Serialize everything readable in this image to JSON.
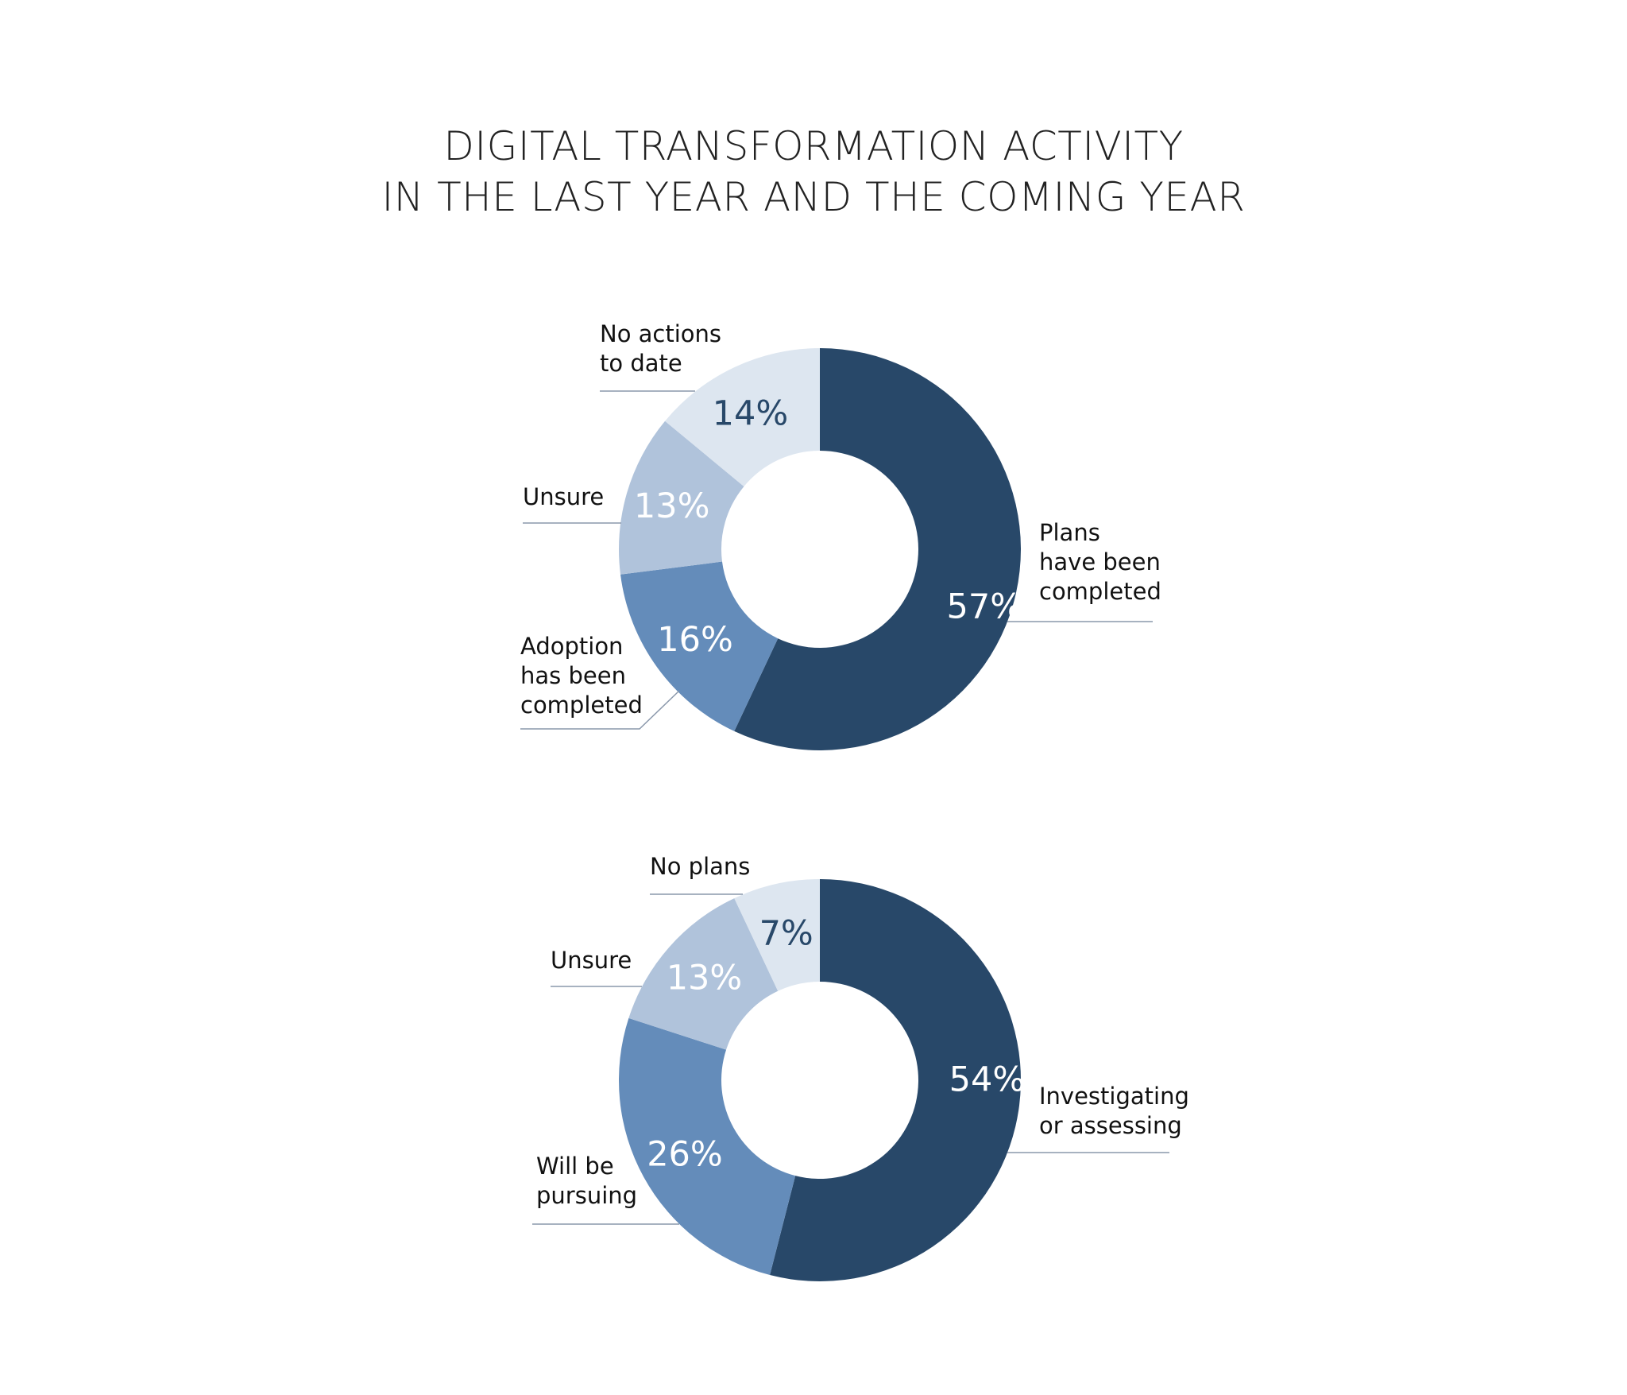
{
  "title": {
    "line1": "DIGITAL TRANSFORMATION ACTIVITY",
    "line2": "IN THE LAST YEAR AND THE COMING YEAR"
  },
  "colors": {
    "darkest": "#284869",
    "medium": "#648cba",
    "light": "#b0c3db",
    "lightest": "#dde6f0",
    "leader": "#8a98ab"
  },
  "chart_data": [
    {
      "type": "pie",
      "slices": [
        {
          "label": "Plans have been completed",
          "lines": [
            "Plans",
            "have been",
            "completed"
          ],
          "value": 57,
          "value_label": "57%",
          "color": "#284869",
          "value_text_color": "#ffffff"
        },
        {
          "label": "Adoption has been completed",
          "lines": [
            "Adoption",
            "has been",
            "completed"
          ],
          "value": 16,
          "value_label": "16%",
          "color": "#648cba",
          "value_text_color": "#ffffff"
        },
        {
          "label": "Unsure",
          "lines": [
            "Unsure"
          ],
          "value": 13,
          "value_label": "13%",
          "color": "#b0c3db",
          "value_text_color": "#ffffff"
        },
        {
          "label": "No actions to date",
          "lines": [
            "No actions",
            "to date"
          ],
          "value": 14,
          "value_label": "14%",
          "color": "#dde6f0",
          "value_text_color": "#284869"
        }
      ]
    },
    {
      "type": "pie",
      "slices": [
        {
          "label": "Investigating or assessing",
          "lines": [
            "Investigating",
            "or assessing"
          ],
          "value": 54,
          "value_label": "54%",
          "color": "#284869",
          "value_text_color": "#ffffff"
        },
        {
          "label": "Will be pursuing",
          "lines": [
            "Will be",
            "pursuing"
          ],
          "value": 26,
          "value_label": "26%",
          "color": "#648cba",
          "value_text_color": "#ffffff"
        },
        {
          "label": "Unsure",
          "lines": [
            "Unsure"
          ],
          "value": 13,
          "value_label": "13%",
          "color": "#b0c3db",
          "value_text_color": "#ffffff"
        },
        {
          "label": "No plans",
          "lines": [
            "No plans"
          ],
          "value": 7,
          "value_label": "7%",
          "color": "#dde6f0",
          "value_text_color": "#284869"
        }
      ]
    }
  ]
}
